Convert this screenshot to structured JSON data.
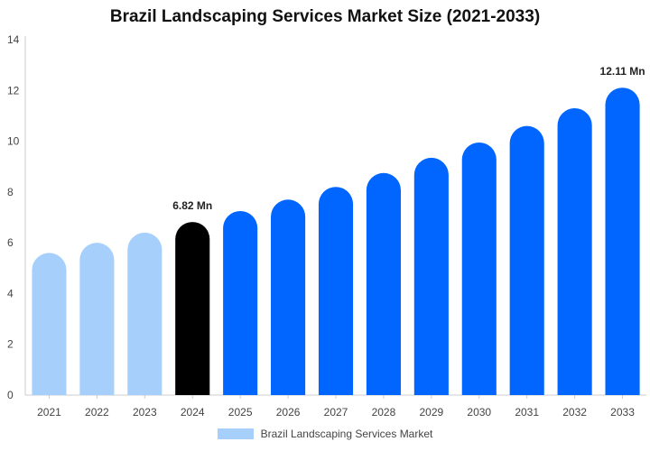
{
  "chart_data": {
    "type": "bar",
    "title": "Brazil Landscaping Services Market Size (2021-2033)",
    "categories": [
      "2021",
      "2022",
      "2023",
      "2024",
      "2025",
      "2026",
      "2027",
      "2028",
      "2029",
      "2030",
      "2031",
      "2032",
      "2033"
    ],
    "series": [
      {
        "name": "Brazil Landscaping Services Market",
        "values": [
          5.6,
          6.0,
          6.4,
          6.82,
          7.25,
          7.7,
          8.2,
          8.75,
          9.35,
          9.95,
          10.6,
          11.3,
          12.11
        ]
      }
    ],
    "bar_colors": [
      "#a6d0fb",
      "#a6d0fb",
      "#a6d0fb",
      "#000000",
      "#0066ff",
      "#0066ff",
      "#0066ff",
      "#0066ff",
      "#0066ff",
      "#0066ff",
      "#0066ff",
      "#0066ff",
      "#0066ff"
    ],
    "annotations": [
      {
        "category": "2024",
        "text": "6.82 Mn"
      },
      {
        "category": "2033",
        "text": "12.11 Mn"
      }
    ],
    "yticks": [
      0,
      2,
      4,
      6,
      8,
      10,
      12,
      14
    ],
    "ylim": [
      0,
      14
    ],
    "xlabel": "",
    "ylabel": "",
    "grid": false,
    "legend_position": "bottom",
    "legend_color": "#a6d0fb"
  }
}
